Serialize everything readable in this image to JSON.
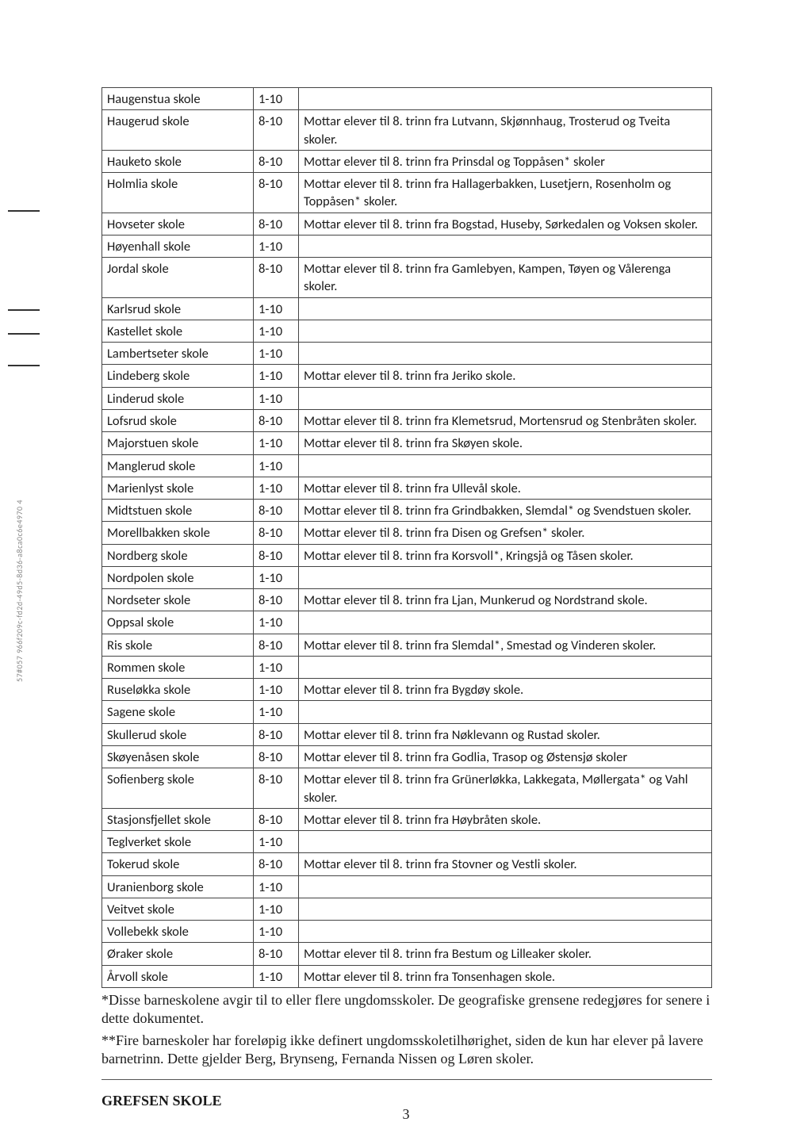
{
  "vertical_label": "57#057 966f209c-fd2d-49d5-8d36-a8ca0c6e4970 4",
  "table": {
    "rows": [
      {
        "school": "Haugenstua skole",
        "grades": "1-10",
        "note": ""
      },
      {
        "school": "Haugerud skole",
        "grades": "8-10",
        "note": "Mottar elever til 8. trinn fra Lutvann, Skjønnhaug, Trosterud og Tveita skoler."
      },
      {
        "school": "Hauketo skole",
        "grades": "8-10",
        "note": "Mottar elever til 8. trinn fra Prinsdal og Toppåsen* skoler"
      },
      {
        "school": "Holmlia skole",
        "grades": "8-10",
        "note": "Mottar elever til 8. trinn fra Hallagerbakken, Lusetjern, Rosenholm og Toppåsen* skoler."
      },
      {
        "school": "Hovseter skole",
        "grades": "8-10",
        "note": "Mottar elever til 8. trinn fra Bogstad, Huseby, Sørkedalen og Voksen skoler."
      },
      {
        "school": "Høyenhall skole",
        "grades": "1-10",
        "note": ""
      },
      {
        "school": "Jordal skole",
        "grades": "8-10",
        "note": "Mottar elever til 8. trinn fra Gamlebyen, Kampen, Tøyen og Vålerenga skoler."
      },
      {
        "school": "Karlsrud skole",
        "grades": "1-10",
        "note": ""
      },
      {
        "school": "Kastellet skole",
        "grades": "1-10",
        "note": ""
      },
      {
        "school": "Lambertseter skole",
        "grades": "1-10",
        "note": ""
      },
      {
        "school": "Lindeberg skole",
        "grades": "1-10",
        "note": "Mottar elever til 8. trinn fra Jeriko skole."
      },
      {
        "school": "Linderud skole",
        "grades": "1-10",
        "note": ""
      },
      {
        "school": "Lofsrud skole",
        "grades": "8-10",
        "note": "Mottar elever til 8. trinn fra Klemetsrud, Mortensrud og Stenbråten skoler."
      },
      {
        "school": "Majorstuen skole",
        "grades": "1-10",
        "note": "Mottar elever til 8. trinn fra Skøyen skole."
      },
      {
        "school": "Manglerud skole",
        "grades": "1-10",
        "note": ""
      },
      {
        "school": "Marienlyst skole",
        "grades": "1-10",
        "note": "Mottar elever til 8. trinn fra Ullevål skole."
      },
      {
        "school": "Midtstuen skole",
        "grades": "8-10",
        "note": "Mottar elever til 8. trinn fra Grindbakken, Slemdal* og Svendstuen skoler."
      },
      {
        "school": "Morellbakken skole",
        "grades": "8-10",
        "note": "Mottar elever til 8. trinn fra Disen og Grefsen* skoler."
      },
      {
        "school": "Nordberg skole",
        "grades": "8-10",
        "note": "Mottar elever til 8. trinn fra Korsvoll*, Kringsjå og Tåsen skoler."
      },
      {
        "school": "Nordpolen skole",
        "grades": "1-10",
        "note": ""
      },
      {
        "school": "Nordseter skole",
        "grades": "8-10",
        "note": "Mottar elever til 8. trinn fra Ljan, Munkerud og Nordstrand skole."
      },
      {
        "school": "Oppsal skole",
        "grades": "1-10",
        "note": ""
      },
      {
        "school": "Ris skole",
        "grades": "8-10",
        "note": "Mottar elever til 8. trinn fra Slemdal*, Smestad og Vinderen skoler."
      },
      {
        "school": "Rommen skole",
        "grades": "1-10",
        "note": ""
      },
      {
        "school": "Ruseløkka skole",
        "grades": "1-10",
        "note": "Mottar elever til 8. trinn fra Bygdøy skole."
      },
      {
        "school": "Sagene skole",
        "grades": "1-10",
        "note": ""
      },
      {
        "school": "Skullerud skole",
        "grades": "8-10",
        "note": "Mottar elever til 8. trinn fra Nøklevann og Rustad skoler."
      },
      {
        "school": "Skøyenåsen skole",
        "grades": "8-10",
        "note": "Mottar elever til 8. trinn fra Godlia, Trasop og Østensjø skoler"
      },
      {
        "school": "Sofienberg skole",
        "grades": "8-10",
        "note": "Mottar elever til 8. trinn fra Grünerløkka, Lakkegata, Møllergata* og Vahl skoler."
      },
      {
        "school": "Stasjonsfjellet skole",
        "grades": "8-10",
        "note": "Mottar elever til 8. trinn fra Høybråten skole."
      },
      {
        "school": "Teglverket skole",
        "grades": "1-10",
        "note": ""
      },
      {
        "school": "Tokerud skole",
        "grades": "8-10",
        "note": "Mottar elever til 8. trinn fra Stovner og Vestli skoler."
      },
      {
        "school": "Uranienborg skole",
        "grades": "1-10",
        "note": ""
      },
      {
        "school": "Veitvet skole",
        "grades": "1-10",
        "note": ""
      },
      {
        "school": "Vollebekk skole",
        "grades": "1-10",
        "note": ""
      },
      {
        "school": "Øraker skole",
        "grades": "8-10",
        "note": "Mottar elever til 8. trinn fra Bestum og Lilleaker skoler."
      },
      {
        "school": "Årvoll skole",
        "grades": "1-10",
        "note": "Mottar elever til 8. trinn fra Tonsenhagen skole."
      }
    ]
  },
  "note1": "*Disse barneskolene avgir til to eller flere ungdomsskoler. De geografiske grensene redegjøres for senere i dette dokumentet.",
  "note2": "**Fire barneskoler har foreløpig ikke definert ungdomsskoletilhørighet, siden de kun har elever på lavere barnetrinn. Dette gjelder Berg, Brynseng, Fernanda Nissen og Løren skoler.",
  "heading": "GREFSEN SKOLE",
  "page_number": "3"
}
